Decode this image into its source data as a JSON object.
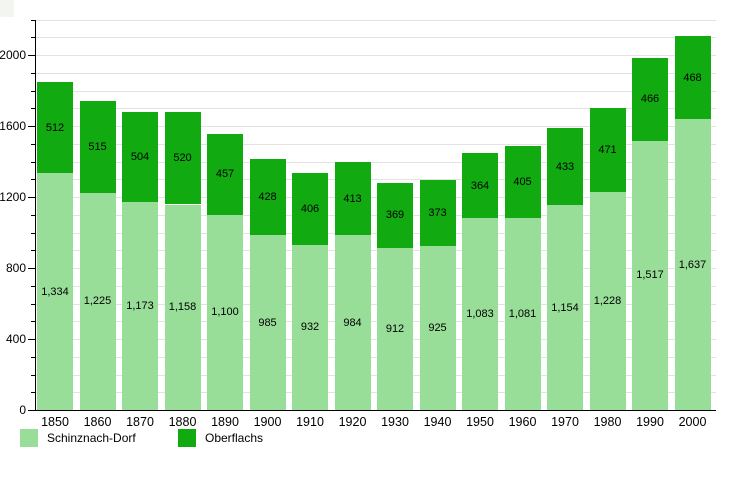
{
  "page": {
    "background": "#ffffff"
  },
  "chart_data": {
    "type": "bar",
    "stacked": true,
    "title": "",
    "xlabel": "",
    "ylabel": "",
    "categories": [
      "1850",
      "1860",
      "1870",
      "1880",
      "1890",
      "1900",
      "1910",
      "1920",
      "1930",
      "1940",
      "1950",
      "1960",
      "1970",
      "1980",
      "1990",
      "2000"
    ],
    "series": [
      {
        "name": "Schinznach-Dorf",
        "color": "#98de98",
        "values": [
          1334,
          1225,
          1173,
          1158,
          1100,
          985,
          932,
          984,
          912,
          925,
          1083,
          1081,
          1154,
          1228,
          1517,
          1637
        ],
        "labels": [
          "1,334",
          "1,225",
          "1,173",
          "1,158",
          "1,100",
          "985",
          "932",
          "984",
          "912",
          "925",
          "1,083",
          "1,081",
          "1,154",
          "1,228",
          "1,517",
          "1,637"
        ]
      },
      {
        "name": "Oberflachs",
        "color": "#11aa11",
        "values": [
          512,
          515,
          504,
          520,
          457,
          428,
          406,
          413,
          369,
          373,
          364,
          405,
          433,
          471,
          466,
          468
        ],
        "labels": [
          "512",
          "515",
          "504",
          "520",
          "457",
          "428",
          "406",
          "413",
          "369",
          "373",
          "364",
          "405",
          "433",
          "471",
          "466",
          "468"
        ]
      }
    ],
    "value_labels": true,
    "ylim": [
      0,
      2200
    ],
    "y_major_ticks": [
      0,
      400,
      800,
      1200,
      1600,
      2000
    ],
    "y_minor_step": 100,
    "grid": "horizontal-minor",
    "grid_color": "#e3e3e3",
    "axis_color": "#000000",
    "legend_position": "bottom-left"
  },
  "legend": {
    "items": [
      {
        "label": "Schinznach-Dorf",
        "color": "#98de98"
      },
      {
        "label": "Oberflachs",
        "color": "#11aa11"
      }
    ]
  }
}
